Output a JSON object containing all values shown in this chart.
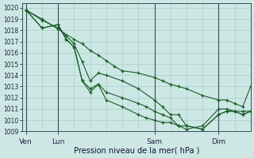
{
  "bg_color": "#cde8e4",
  "grid_color": "#a8ccca",
  "line_color": "#1a5c28",
  "ylim": [
    1009,
    1020.4
  ],
  "ytick_vals": [
    1009,
    1010,
    1011,
    1012,
    1013,
    1014,
    1015,
    1016,
    1017,
    1018,
    1019,
    1020
  ],
  "xlabel": "Pression niveau de la mer( hPa )",
  "xtick_positions": [
    0,
    4,
    16,
    24
  ],
  "xtick_labels": [
    "Ven",
    "Lun",
    "Sam",
    "Dim"
  ],
  "vline_positions": [
    0,
    4,
    16,
    24
  ],
  "xlim": [
    -0.5,
    28
  ],
  "series": [
    {
      "x": [
        0,
        2,
        4,
        6,
        7,
        8,
        9,
        10,
        11,
        12,
        14,
        16,
        17,
        18,
        19,
        20,
        22,
        24,
        25,
        26,
        27,
        28
      ],
      "y": [
        1019.8,
        1019.0,
        1018.1,
        1017.2,
        1016.8,
        1016.2,
        1015.8,
        1015.3,
        1014.8,
        1014.4,
        1014.2,
        1013.8,
        1013.5,
        1013.2,
        1013.0,
        1012.8,
        1012.2,
        1011.8,
        1011.8,
        1011.5,
        1011.2,
        1013.0
      ]
    },
    {
      "x": [
        0,
        2,
        4,
        5,
        6,
        7,
        8,
        9,
        10,
        12,
        14,
        16,
        17,
        18,
        19,
        20,
        22,
        24,
        25,
        26,
        27,
        28
      ],
      "y": [
        1019.8,
        1018.9,
        1018.2,
        1017.5,
        1016.8,
        1015.2,
        1013.5,
        1014.2,
        1014.0,
        1013.5,
        1012.8,
        1011.8,
        1011.2,
        1010.5,
        1010.5,
        1009.5,
        1009.2,
        1010.5,
        1010.8,
        1010.8,
        1010.8,
        1010.8
      ]
    },
    {
      "x": [
        0,
        2,
        4,
        5,
        6,
        7,
        8,
        9,
        10,
        12,
        14,
        15,
        16,
        17,
        18,
        19,
        20,
        22,
        24,
        25,
        26,
        27,
        28
      ],
      "y": [
        1019.8,
        1018.2,
        1018.5,
        1017.2,
        1016.5,
        1013.5,
        1012.8,
        1013.2,
        1012.5,
        1012.0,
        1011.5,
        1011.2,
        1010.8,
        1010.5,
        1010.2,
        1009.5,
        1009.5,
        1009.2,
        1010.5,
        1010.8,
        1010.8,
        1010.5,
        1010.8
      ]
    },
    {
      "x": [
        0,
        2,
        4,
        5,
        6,
        7,
        8,
        9,
        10,
        12,
        14,
        15,
        16,
        17,
        18,
        19,
        20,
        22,
        24,
        25,
        26,
        27,
        28
      ],
      "y": [
        1019.8,
        1018.2,
        1018.5,
        1017.2,
        1016.5,
        1013.5,
        1012.5,
        1013.2,
        1011.8,
        1011.2,
        1010.5,
        1010.2,
        1010.0,
        1009.8,
        1009.8,
        1009.5,
        1009.2,
        1009.5,
        1011.0,
        1011.0,
        1010.8,
        1010.5,
        1010.8
      ]
    }
  ]
}
